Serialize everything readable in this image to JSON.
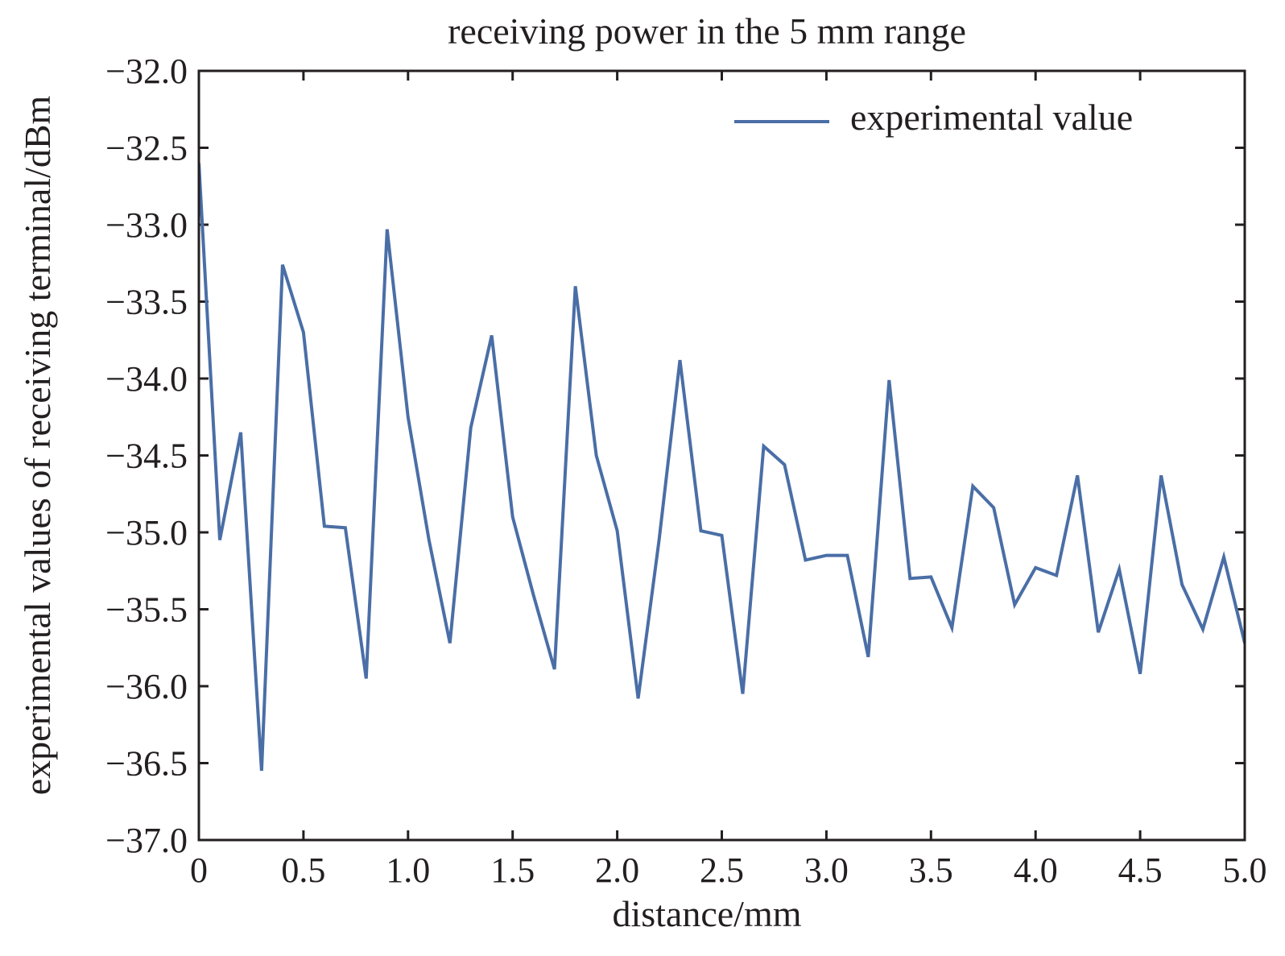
{
  "chart_data": {
    "type": "line",
    "title": "receiving power in the 5 mm range",
    "xlabel": "distance/mm",
    "ylabel": "experimental values of receiving terminal/dBm",
    "xlim": [
      0,
      5.0
    ],
    "ylim": [
      -37.0,
      -32.0
    ],
    "xticks": [
      0,
      0.5,
      1.0,
      1.5,
      2.0,
      2.5,
      3.0,
      3.5,
      4.0,
      4.5,
      5.0
    ],
    "xtick_labels": [
      "0",
      "0.5",
      "1.0",
      "1.5",
      "2.0",
      "2.5",
      "3.0",
      "3.5",
      "4.0",
      "4.5",
      "5.0"
    ],
    "yticks": [
      -32.0,
      -32.5,
      -33.0,
      -33.5,
      -34.0,
      -34.5,
      -35.0,
      -35.5,
      -36.0,
      -36.5,
      -37.0
    ],
    "ytick_labels": [
      "−32.0",
      "−32.5",
      "−33.0",
      "−33.5",
      "−34.0",
      "−34.5",
      "−35.0",
      "−35.5",
      "−36.0",
      "−36.5",
      "−37.0"
    ],
    "grid": false,
    "legend_position": "top-right",
    "series": [
      {
        "name": "experimental value",
        "color": "#4a6ea6",
        "x": [
          0,
          0.1,
          0.2,
          0.3,
          0.4,
          0.5,
          0.6,
          0.7,
          0.8,
          0.9,
          1.0,
          1.1,
          1.2,
          1.3,
          1.4,
          1.5,
          1.6,
          1.7,
          1.8,
          1.9,
          2.0,
          2.1,
          2.2,
          2.3,
          2.4,
          2.5,
          2.6,
          2.7,
          2.8,
          2.9,
          3.0,
          3.1,
          3.2,
          3.3,
          3.4,
          3.5,
          3.6,
          3.7,
          3.8,
          3.9,
          4.0,
          4.1,
          4.2,
          4.3,
          4.4,
          4.5,
          4.6,
          4.7,
          4.8,
          4.9,
          5.0
        ],
        "y": [
          -32.6,
          -35.05,
          -34.35,
          -36.55,
          -33.26,
          -33.7,
          -34.96,
          -34.97,
          -35.95,
          -33.03,
          -34.25,
          -35.05,
          -35.72,
          -34.32,
          -33.72,
          -34.9,
          -35.41,
          -35.89,
          -33.4,
          -34.5,
          -34.99,
          -36.08,
          -35.05,
          -33.88,
          -34.99,
          -35.02,
          -36.05,
          -34.44,
          -34.56,
          -35.18,
          -35.15,
          -35.15,
          -35.81,
          -34.01,
          -35.3,
          -35.29,
          -35.62,
          -34.7,
          -34.84,
          -35.47,
          -35.23,
          -35.28,
          -34.63,
          -35.65,
          -35.24,
          -35.92,
          -34.63,
          -35.34,
          -35.63,
          -35.16,
          -35.72
        ]
      }
    ]
  }
}
